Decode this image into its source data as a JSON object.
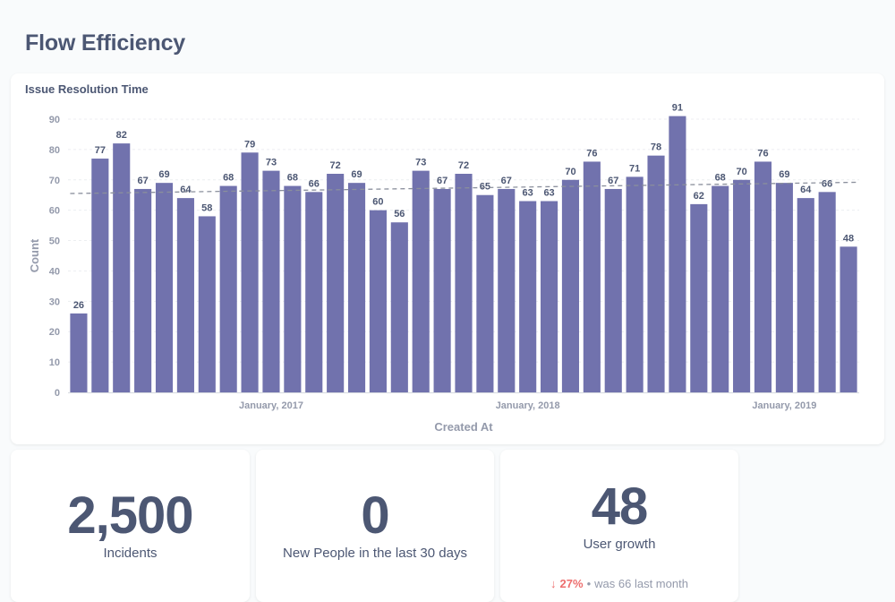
{
  "dashboard": {
    "title": "Flow Efficiency"
  },
  "chart_card": {
    "title": "Issue Resolution Time"
  },
  "chart_data": {
    "type": "bar",
    "title": "Issue Resolution Time",
    "xlabel": "Created At",
    "ylabel": "Count",
    "ylim": [
      0,
      90
    ],
    "yticks": [
      0,
      10,
      20,
      30,
      40,
      50,
      60,
      70,
      80,
      90
    ],
    "x_tick_labels": [
      {
        "label": "January, 2017",
        "index": 9
      },
      {
        "label": "January, 2018",
        "index": 21
      },
      {
        "label": "January, 2019",
        "index": 33
      }
    ],
    "values": [
      26,
      77,
      82,
      67,
      69,
      64,
      58,
      68,
      79,
      73,
      68,
      66,
      72,
      69,
      60,
      56,
      73,
      67,
      72,
      65,
      67,
      63,
      63,
      70,
      76,
      67,
      71,
      78,
      91,
      62,
      68,
      70,
      76,
      69,
      64,
      66,
      48
    ],
    "trend_line": {
      "start": 65.5,
      "end": 69.2
    },
    "colors": {
      "bar": "#7172ad"
    },
    "grid": true,
    "data_labels": true
  },
  "scalars": [
    {
      "value": "2,500",
      "label": "Incidents"
    },
    {
      "value": "0",
      "label": "New People in the last 30 days"
    },
    {
      "value": "48",
      "label": "User growth"
    }
  ],
  "comparison": {
    "arrow": "↓",
    "percent": "27%",
    "separator": "•",
    "was_text": "was 66",
    "period": "last month"
  }
}
